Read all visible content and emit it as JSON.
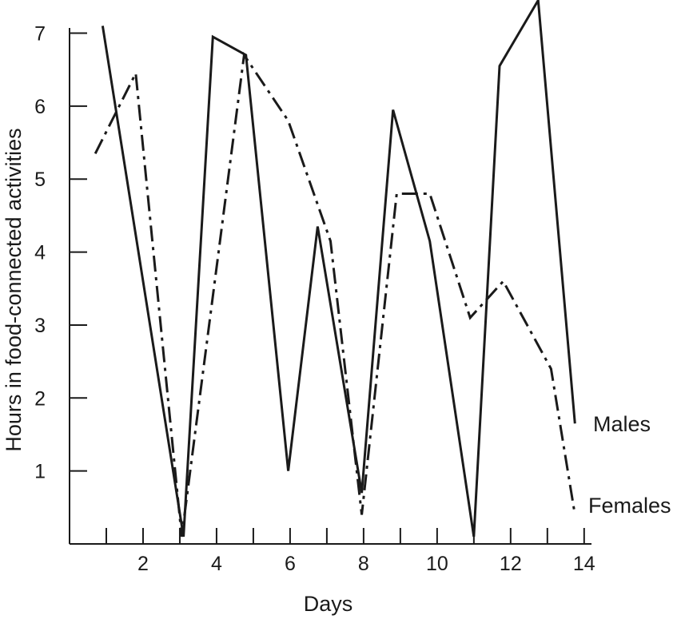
{
  "chart_data": {
    "type": "line",
    "xlabel": "Days",
    "ylabel": "Hours in food-connected activities",
    "xlim": [
      0,
      14.2
    ],
    "ylim": [
      0,
      7.4
    ],
    "x_ticks": [
      1,
      2,
      3,
      4,
      5,
      6,
      7,
      8,
      9,
      10,
      11,
      12,
      13,
      14
    ],
    "x_tick_labels": [
      "",
      "2",
      "",
      "4",
      "",
      "6",
      "",
      "8",
      "",
      "10",
      "",
      "12",
      "",
      "14"
    ],
    "y_ticks": [
      1,
      2,
      3,
      4,
      5,
      6,
      7
    ],
    "y_tick_labels": [
      "1",
      "2",
      "3",
      "4",
      "5",
      "6",
      "7"
    ],
    "grid": false,
    "series": [
      {
        "name": "Males",
        "style": "solid",
        "color": "#1a1a1a",
        "x": [
          0.9,
          3.1,
          3.9,
          4.8,
          5.95,
          6.75,
          7.95,
          8.8,
          9.8,
          11.0,
          11.7,
          12.75,
          13.75
        ],
        "y": [
          7.1,
          0.1,
          6.95,
          6.7,
          1.0,
          4.35,
          0.7,
          5.95,
          4.15,
          0.1,
          6.55,
          7.45,
          1.65
        ]
      },
      {
        "name": "Females",
        "style": "dashdot",
        "color": "#1a1a1a",
        "x": [
          0.7,
          1.8,
          3.05,
          4.75,
          5.95,
          7.1,
          7.95,
          8.9,
          9.8,
          10.9,
          11.8,
          13.1,
          13.75
        ],
        "y": [
          5.35,
          6.45,
          0.1,
          6.7,
          5.8,
          4.15,
          0.4,
          4.8,
          4.8,
          3.1,
          3.6,
          2.4,
          0.4
        ]
      }
    ]
  }
}
